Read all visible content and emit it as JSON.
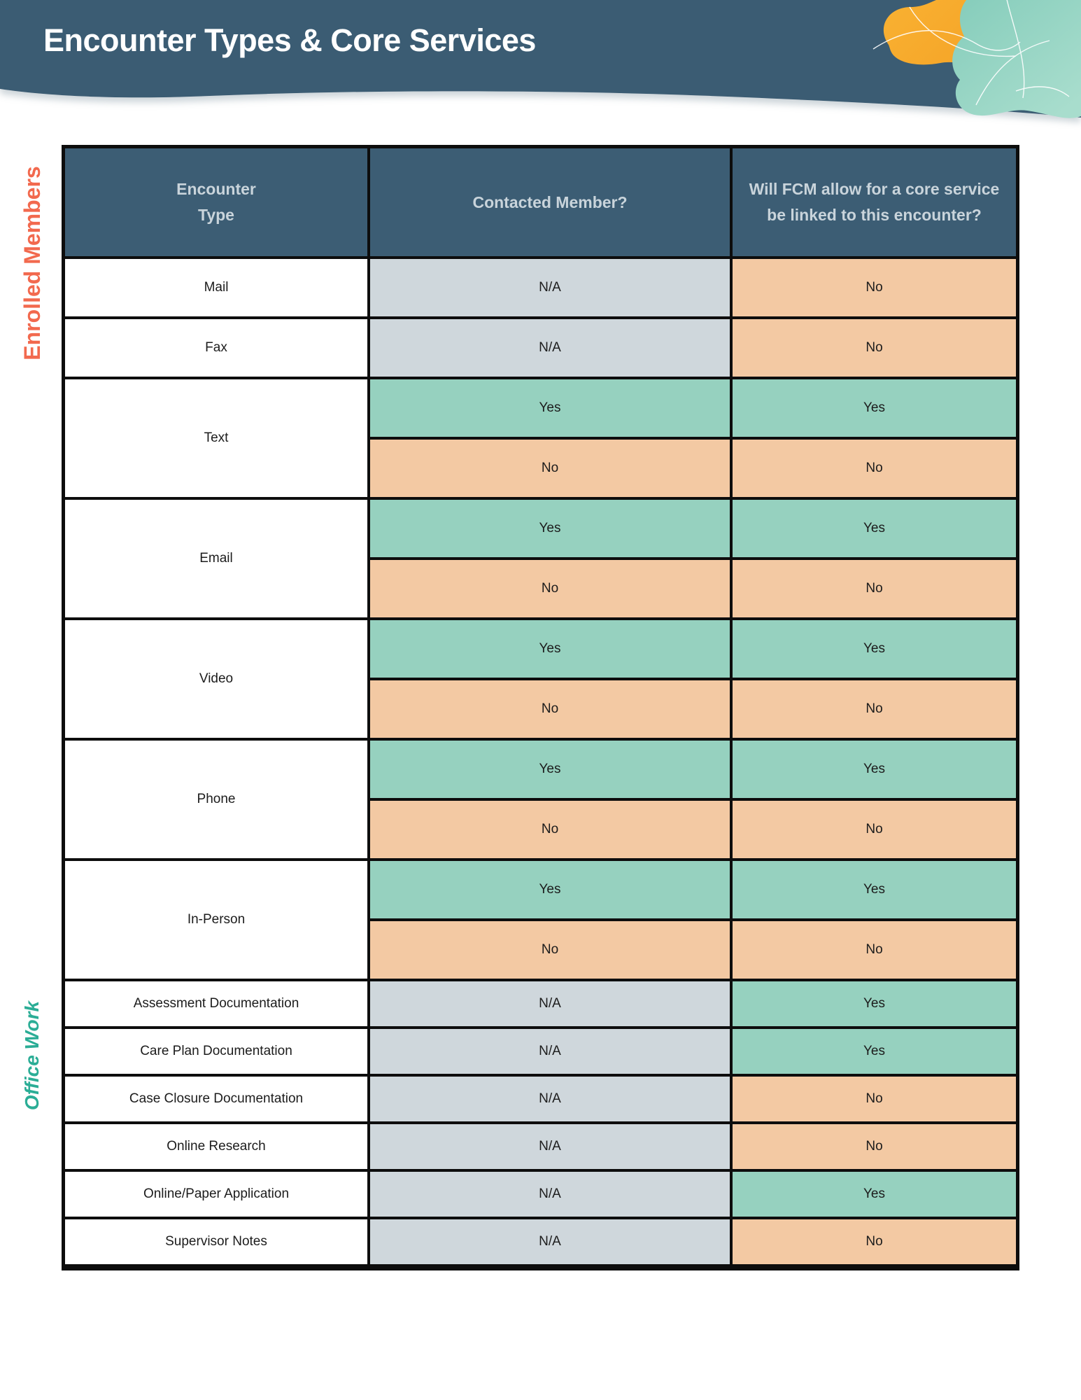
{
  "page_title": "Encounter Types & Core Services",
  "side_labels": {
    "enrolled": "Enrolled Members",
    "office": "Office Work"
  },
  "colors": {
    "banner_blue": "#3B5C73",
    "header_cell_blue": "#3C5D74",
    "yes_green": "#96D1BF",
    "no_orange": "#F3C9A3",
    "na_gray": "#CFD7DC",
    "enrolled_label_orange": "#F2694E",
    "office_label_teal": "#2BAD96",
    "blob_orange": "#F8B133",
    "blob_teal": "#93D2C1",
    "border_black": "#0D0D0D"
  },
  "decorations": [
    "wave-banner",
    "orange-blob",
    "teal-blob",
    "white-vein-lines"
  ],
  "table": {
    "headers": [
      "Encounter\nType",
      "Contacted Member?",
      "Will FCM allow for a core service be linked to this encounter?"
    ],
    "rows": [
      {
        "label": "Mail",
        "section": "enrolled",
        "contacted": "N/A",
        "contacted_variant": "na",
        "linked": "No",
        "linked_variant": "no"
      },
      {
        "label": "Fax",
        "section": "enrolled",
        "contacted": "N/A",
        "contacted_variant": "na",
        "linked": "No",
        "linked_variant": "no"
      },
      {
        "label": "Text",
        "section": "enrolled",
        "subrows": [
          {
            "contacted": "Yes",
            "contacted_variant": "yes",
            "linked": "Yes",
            "linked_variant": "yes"
          },
          {
            "contacted": "No",
            "contacted_variant": "no",
            "linked": "No",
            "linked_variant": "no"
          }
        ]
      },
      {
        "label": "Email",
        "section": "enrolled",
        "subrows": [
          {
            "contacted": "Yes",
            "contacted_variant": "yes",
            "linked": "Yes",
            "linked_variant": "yes"
          },
          {
            "contacted": "No",
            "contacted_variant": "no",
            "linked": "No",
            "linked_variant": "no"
          }
        ]
      },
      {
        "label": "Video",
        "section": "enrolled",
        "subrows": [
          {
            "contacted": "Yes",
            "contacted_variant": "yes",
            "linked": "Yes",
            "linked_variant": "yes"
          },
          {
            "contacted": "No",
            "contacted_variant": "no",
            "linked": "No",
            "linked_variant": "no"
          }
        ]
      },
      {
        "label": "Phone",
        "section": "enrolled",
        "subrows": [
          {
            "contacted": "Yes",
            "contacted_variant": "yes",
            "linked": "Yes",
            "linked_variant": "yes"
          },
          {
            "contacted": "No",
            "contacted_variant": "no",
            "linked": "No",
            "linked_variant": "no"
          }
        ]
      },
      {
        "label": "In-Person",
        "section": "enrolled",
        "subrows": [
          {
            "contacted": "Yes",
            "contacted_variant": "yes",
            "linked": "Yes",
            "linked_variant": "yes"
          },
          {
            "contacted": "No",
            "contacted_variant": "no",
            "linked": "No",
            "linked_variant": "no"
          }
        ]
      },
      {
        "label": "Assessment Documentation",
        "section": "office",
        "contacted": "N/A",
        "contacted_variant": "na",
        "linked": "Yes",
        "linked_variant": "yes"
      },
      {
        "label": "Care Plan Documentation",
        "section": "office",
        "contacted": "N/A",
        "contacted_variant": "na",
        "linked": "Yes",
        "linked_variant": "yes"
      },
      {
        "label": "Case Closure Documentation",
        "section": "office",
        "contacted": "N/A",
        "contacted_variant": "na",
        "linked": "No",
        "linked_variant": "no"
      },
      {
        "label": "Online Research",
        "section": "office",
        "contacted": "N/A",
        "contacted_variant": "na",
        "linked": "No",
        "linked_variant": "no"
      },
      {
        "label": "Online/Paper Application",
        "section": "office",
        "contacted": "N/A",
        "contacted_variant": "na",
        "linked": "Yes",
        "linked_variant": "yes"
      },
      {
        "label": "Supervisor Notes",
        "section": "office",
        "contacted": "N/A",
        "contacted_variant": "na",
        "linked": "No",
        "linked_variant": "no"
      }
    ]
  }
}
